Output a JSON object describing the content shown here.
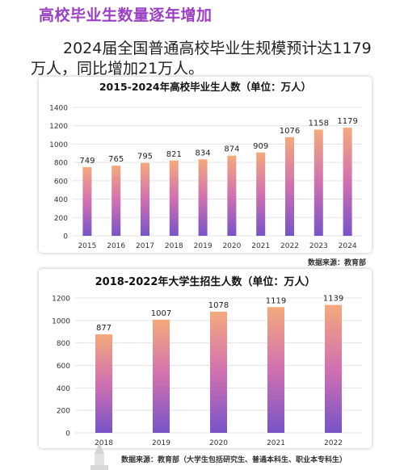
{
  "heading": "高校毕业生数量逐年增加",
  "intro": "2024届全国普通高校毕业生规模预计达1179万人，同比增加21万人。",
  "colors": {
    "heading": "#9b3fc4",
    "bar_top": "#f4aa7c",
    "bar_mid": "#d270b0",
    "bar_bottom": "#7654c8",
    "grid": "#e3e3e3"
  },
  "sources": {
    "chart1": "数据来源：教育部",
    "chart2": "数据来源：教育部（大学生包括研究生、普通本科生、职业本专科生）"
  },
  "chart_data": [
    {
      "type": "bar",
      "title": "2015-2024年高校毕业生人数（单位：万人）",
      "categories": [
        "2015",
        "2016",
        "2017",
        "2018",
        "2019",
        "2020",
        "2021",
        "2022",
        "2023",
        "2024"
      ],
      "values": [
        749,
        765,
        795,
        821,
        834,
        874,
        909,
        1076,
        1158,
        1179
      ],
      "yticks": [
        0,
        200,
        400,
        600,
        800,
        1000,
        1200,
        1400
      ],
      "ylim": [
        0,
        1400
      ],
      "grid": true,
      "legend": "none"
    },
    {
      "type": "bar",
      "title": "2018-2022年大学生招生人数（单位：万人）",
      "categories": [
        "2018",
        "2019",
        "2020",
        "2021",
        "2022"
      ],
      "values": [
        877,
        1007,
        1078,
        1119,
        1139
      ],
      "yticks": [
        0,
        200,
        400,
        600,
        800,
        1000,
        1200
      ],
      "ylim": [
        0,
        1200
      ],
      "grid": true,
      "legend": "none"
    }
  ]
}
